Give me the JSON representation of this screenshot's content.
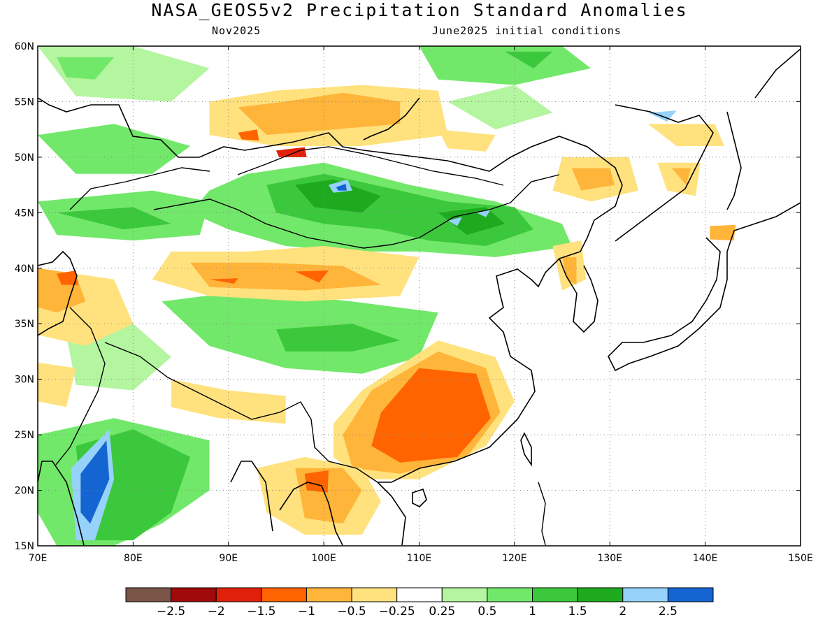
{
  "title": "NASA_GEOS5v2 Precipitation Standard Anomalies",
  "subtitle_left": "Nov2025",
  "subtitle_right": "June2025 initial conditions",
  "axes": {
    "x_ticks": [
      "70E",
      "80E",
      "90E",
      "100E",
      "110E",
      "120E",
      "130E",
      "140E",
      "150E"
    ],
    "y_ticks": [
      "60N",
      "55N",
      "50N",
      "45N",
      "40N",
      "35N",
      "30N",
      "25N",
      "20N",
      "15N"
    ],
    "lon_range": [
      70,
      150
    ],
    "lat_range": [
      15,
      60
    ]
  },
  "colorbar": {
    "colors": [
      "#7a5548",
      "#a00a0a",
      "#e02008",
      "#ff6400",
      "#ffb43a",
      "#ffe27e",
      "#ffffff",
      "#b4f5a0",
      "#72e86a",
      "#3cc83c",
      "#1eaa1e",
      "#96d2fa",
      "#1464d2"
    ],
    "labels": [
      "−2.5",
      "−2",
      "−1.5",
      "−1",
      "−0.5",
      "−0.25",
      "0.25",
      "0.5",
      "1",
      "1.5",
      "2",
      "2.5"
    ]
  },
  "anomaly_regions": [
    {
      "color": "#72e86a",
      "pts": [
        [
          92,
          48.5
        ],
        [
          100,
          49.5
        ],
        [
          109,
          47.5
        ],
        [
          118,
          46
        ],
        [
          125,
          44
        ],
        [
          126,
          42
        ],
        [
          118,
          41
        ],
        [
          110,
          41.5
        ],
        [
          103,
          41.5
        ],
        [
          96,
          42
        ],
        [
          90,
          43.5
        ],
        [
          86,
          45
        ],
        [
          88,
          47
        ]
      ]
    },
    {
      "color": "#3cc83c",
      "pts": [
        [
          94,
          47.5
        ],
        [
          100,
          48.5
        ],
        [
          108,
          47
        ],
        [
          113,
          46
        ],
        [
          120,
          45.5
        ],
        [
          122,
          43.5
        ],
        [
          117,
          42
        ],
        [
          111,
          42.5
        ],
        [
          106,
          43.5
        ],
        [
          100,
          44
        ],
        [
          95,
          45
        ]
      ]
    },
    {
      "color": "#1eaa1e",
      "pts": [
        [
          97,
          47.5
        ],
        [
          101,
          48
        ],
        [
          106,
          46.5
        ],
        [
          104,
          45
        ],
        [
          99,
          45.5
        ]
      ]
    },
    {
      "color": "#1eaa1e",
      "pts": [
        [
          112,
          45
        ],
        [
          117,
          45.5
        ],
        [
          119,
          44
        ],
        [
          115,
          43
        ]
      ]
    },
    {
      "color": "#96d2fa",
      "pts": [
        [
          100.5,
          47.5
        ],
        [
          102.5,
          48
        ],
        [
          103,
          47
        ],
        [
          101,
          46.8
        ]
      ]
    },
    {
      "color": "#1464d2",
      "pts": [
        [
          101.3,
          47.3
        ],
        [
          102.3,
          47.6
        ],
        [
          102.4,
          47
        ],
        [
          101.5,
          47
        ]
      ]
    },
    {
      "color": "#96d2fa",
      "pts": [
        [
          113,
          44.3
        ],
        [
          114.5,
          44.6
        ],
        [
          114,
          43.8
        ]
      ]
    },
    {
      "color": "#96d2fa",
      "pts": [
        [
          116,
          45
        ],
        [
          117.5,
          45.3
        ],
        [
          117,
          44.6
        ]
      ]
    },
    {
      "color": "#72e86a",
      "pts": [
        [
          70,
          46
        ],
        [
          82,
          47
        ],
        [
          88,
          46
        ],
        [
          87,
          43
        ],
        [
          80,
          42.5
        ],
        [
          72,
          43
        ]
      ]
    },
    {
      "color": "#3cc83c",
      "pts": [
        [
          72,
          45
        ],
        [
          80,
          45.5
        ],
        [
          84,
          44
        ],
        [
          79,
          43.5
        ]
      ]
    },
    {
      "color": "#72e86a",
      "pts": [
        [
          70,
          52
        ],
        [
          78,
          53
        ],
        [
          86,
          51
        ],
        [
          82,
          48.5
        ],
        [
          74,
          48.5
        ]
      ]
    },
    {
      "color": "#b4f5a0",
      "pts": [
        [
          70,
          60
        ],
        [
          80,
          60
        ],
        [
          88,
          58
        ],
        [
          84,
          55
        ],
        [
          74,
          55.5
        ]
      ]
    },
    {
      "color": "#72e86a",
      "pts": [
        [
          72,
          59
        ],
        [
          78,
          59
        ],
        [
          76,
          57
        ],
        [
          73,
          57.2
        ]
      ]
    },
    {
      "color": "#72e86a",
      "pts": [
        [
          110,
          60
        ],
        [
          125,
          60
        ],
        [
          128,
          58
        ],
        [
          120,
          56.5
        ],
        [
          112,
          57
        ]
      ]
    },
    {
      "color": "#3cc83c",
      "pts": [
        [
          119,
          59.5
        ],
        [
          124,
          59.5
        ],
        [
          122,
          58
        ]
      ]
    },
    {
      "color": "#b4f5a0",
      "pts": [
        [
          113,
          55
        ],
        [
          120,
          56.5
        ],
        [
          124,
          54
        ],
        [
          118,
          52.5
        ]
      ]
    },
    {
      "color": "#72e86a",
      "pts": [
        [
          83,
          37
        ],
        [
          92,
          38
        ],
        [
          103,
          37
        ],
        [
          112,
          36
        ],
        [
          110,
          32
        ],
        [
          104,
          30.5
        ],
        [
          96,
          31
        ],
        [
          88,
          33
        ]
      ]
    },
    {
      "color": "#3cc83c",
      "pts": [
        [
          95,
          34.5
        ],
        [
          103,
          35
        ],
        [
          108,
          33.5
        ],
        [
          103,
          32.5
        ],
        [
          96,
          32.5
        ]
      ]
    },
    {
      "color": "#72e86a",
      "pts": [
        [
          70,
          25
        ],
        [
          78,
          26.5
        ],
        [
          88,
          24.5
        ],
        [
          88,
          20
        ],
        [
          83,
          17
        ],
        [
          78,
          15
        ],
        [
          72,
          15
        ],
        [
          70,
          18
        ]
      ]
    },
    {
      "color": "#3cc83c",
      "pts": [
        [
          74,
          24
        ],
        [
          80,
          25.5
        ],
        [
          86,
          23
        ],
        [
          84,
          18
        ],
        [
          80,
          15.5
        ],
        [
          75,
          15.5
        ]
      ]
    },
    {
      "color": "#96d2fa",
      "pts": [
        [
          73.5,
          22
        ],
        [
          77.5,
          25.5
        ],
        [
          78,
          21
        ],
        [
          76,
          15.5
        ],
        [
          74,
          15.5
        ]
      ]
    },
    {
      "color": "#1464d2",
      "pts": [
        [
          74.5,
          21.5
        ],
        [
          77.2,
          24.5
        ],
        [
          77.5,
          21
        ],
        [
          75.5,
          17
        ],
        [
          74.5,
          18
        ]
      ]
    },
    {
      "color": "#b4f5a0",
      "pts": [
        [
          73,
          34
        ],
        [
          80,
          35
        ],
        [
          84,
          32
        ],
        [
          80,
          29
        ],
        [
          74,
          29.5
        ]
      ]
    },
    {
      "color": "#ffe27e",
      "pts": [
        [
          84,
          41.5
        ],
        [
          92,
          41.5
        ],
        [
          100,
          42
        ],
        [
          110,
          41
        ],
        [
          108,
          37.5
        ],
        [
          98,
          37
        ],
        [
          88,
          37.5
        ],
        [
          82,
          39
        ]
      ]
    },
    {
      "color": "#ffb43a",
      "pts": [
        [
          86,
          40.5
        ],
        [
          94,
          40.5
        ],
        [
          102,
          40.2
        ],
        [
          106,
          38.5
        ],
        [
          98,
          38
        ],
        [
          88,
          38.3
        ]
      ]
    },
    {
      "color": "#ff6400",
      "pts": [
        [
          88,
          39
        ],
        [
          91,
          39.1
        ],
        [
          90.6,
          38.6
        ]
      ]
    },
    {
      "color": "#ff6400",
      "pts": [
        [
          97,
          39.7
        ],
        [
          100.5,
          39.8
        ],
        [
          99.5,
          38.7
        ]
      ]
    },
    {
      "color": "#ffe27e",
      "pts": [
        [
          88,
          55
        ],
        [
          95,
          56
        ],
        [
          104,
          56.5
        ],
        [
          112,
          56
        ],
        [
          113,
          52
        ],
        [
          104,
          51
        ],
        [
          95,
          51
        ],
        [
          88,
          52
        ]
      ]
    },
    {
      "color": "#ffb43a",
      "pts": [
        [
          91,
          54.5
        ],
        [
          96,
          55
        ],
        [
          102,
          55.8
        ],
        [
          108,
          55
        ],
        [
          108,
          53
        ],
        [
          101,
          52.5
        ],
        [
          94,
          52
        ]
      ]
    },
    {
      "color": "#ff6400",
      "pts": [
        [
          91,
          52.2
        ],
        [
          93,
          52.5
        ],
        [
          93.2,
          51.5
        ],
        [
          91.4,
          51.6
        ]
      ]
    },
    {
      "color": "#e02008",
      "pts": [
        [
          95,
          50.6
        ],
        [
          98,
          50.9
        ],
        [
          98.2,
          50
        ],
        [
          95.3,
          50
        ]
      ]
    },
    {
      "color": "#ffe27e",
      "pts": [
        [
          112,
          52.5
        ],
        [
          118,
          52
        ],
        [
          117,
          50.5
        ],
        [
          113,
          50.8
        ]
      ]
    },
    {
      "color": "#ffe27e",
      "pts": [
        [
          125,
          50
        ],
        [
          132,
          50
        ],
        [
          133,
          47
        ],
        [
          128,
          46
        ],
        [
          124,
          47
        ]
      ]
    },
    {
      "color": "#ffb43a",
      "pts": [
        [
          126,
          49
        ],
        [
          130,
          49
        ],
        [
          130.5,
          47.5
        ],
        [
          127,
          47
        ]
      ]
    },
    {
      "color": "#ffe27e",
      "pts": [
        [
          134,
          53
        ],
        [
          141,
          53
        ],
        [
          142,
          51
        ],
        [
          137,
          51
        ]
      ]
    },
    {
      "color": "#ffe27e",
      "pts": [
        [
          135,
          49.5
        ],
        [
          139.5,
          49.5
        ],
        [
          139,
          46.5
        ],
        [
          136,
          47
        ]
      ]
    },
    {
      "color": "#ffb43a",
      "pts": [
        [
          136.5,
          49
        ],
        [
          138.5,
          49
        ],
        [
          138,
          47.5
        ]
      ]
    },
    {
      "color": "#96d2fa",
      "pts": [
        [
          134,
          54
        ],
        [
          137,
          54.2
        ],
        [
          136,
          53.2
        ]
      ]
    },
    {
      "color": "#ffe27e",
      "pts": [
        [
          124,
          42
        ],
        [
          127,
          42.5
        ],
        [
          127.5,
          39
        ],
        [
          125,
          38
        ]
      ]
    },
    {
      "color": "#ffb43a",
      "pts": [
        [
          125,
          41
        ],
        [
          126.5,
          41
        ],
        [
          126.5,
          38.5
        ],
        [
          125.5,
          39
        ]
      ]
    },
    {
      "color": "#ffe27e",
      "pts": [
        [
          70,
          40
        ],
        [
          78,
          39
        ],
        [
          80,
          35
        ],
        [
          75,
          33
        ],
        [
          70,
          34
        ]
      ]
    },
    {
      "color": "#ffb43a",
      "pts": [
        [
          70,
          40
        ],
        [
          74,
          39.5
        ],
        [
          75,
          37
        ],
        [
          72,
          36
        ],
        [
          70,
          36.5
        ]
      ]
    },
    {
      "color": "#ff6400",
      "pts": [
        [
          72,
          39.5
        ],
        [
          74,
          39.8
        ],
        [
          74.2,
          38.5
        ],
        [
          72.5,
          38.5
        ]
      ]
    },
    {
      "color": "#ffe27e",
      "pts": [
        [
          70,
          31.5
        ],
        [
          74,
          31
        ],
        [
          73,
          27.5
        ],
        [
          70,
          28
        ]
      ]
    },
    {
      "color": "#ffe27e",
      "pts": [
        [
          84,
          30
        ],
        [
          90,
          29
        ],
        [
          96,
          28.5
        ],
        [
          96,
          26
        ],
        [
          89,
          26.5
        ],
        [
          84,
          27.5
        ]
      ]
    },
    {
      "color": "#ffe27e",
      "pts": [
        [
          104,
          29
        ],
        [
          112,
          33.5
        ],
        [
          118,
          32
        ],
        [
          120,
          28
        ],
        [
          117,
          24
        ],
        [
          110,
          21
        ],
        [
          104,
          21
        ],
        [
          101,
          23
        ],
        [
          101,
          26
        ]
      ]
    },
    {
      "color": "#ffb43a",
      "pts": [
        [
          105,
          29
        ],
        [
          112,
          32.5
        ],
        [
          117,
          31
        ],
        [
          118.5,
          27
        ],
        [
          115,
          23
        ],
        [
          108,
          21.5
        ],
        [
          103,
          22
        ],
        [
          102,
          25
        ]
      ]
    },
    {
      "color": "#ff6400",
      "pts": [
        [
          106,
          27
        ],
        [
          110,
          31
        ],
        [
          116,
          30.5
        ],
        [
          117.5,
          26.5
        ],
        [
          114,
          23
        ],
        [
          108,
          22.5
        ],
        [
          105,
          24
        ]
      ]
    },
    {
      "color": "#ffe27e",
      "pts": [
        [
          93,
          22
        ],
        [
          98,
          23
        ],
        [
          104,
          22
        ],
        [
          106,
          19
        ],
        [
          104,
          16
        ],
        [
          98,
          16
        ],
        [
          94,
          18
        ]
      ]
    },
    {
      "color": "#ffb43a",
      "pts": [
        [
          97,
          22
        ],
        [
          102,
          22
        ],
        [
          104,
          20
        ],
        [
          102,
          17
        ],
        [
          98,
          17.5
        ]
      ]
    },
    {
      "color": "#ff6400",
      "pts": [
        [
          98,
          21.5
        ],
        [
          100.5,
          21.8
        ],
        [
          100.4,
          19.8
        ],
        [
          98.2,
          20
        ]
      ]
    },
    {
      "color": "#ffb43a",
      "pts": [
        [
          140.5,
          43.8
        ],
        [
          143.2,
          43.9
        ],
        [
          143,
          42.5
        ],
        [
          140.5,
          42.6
        ]
      ]
    }
  ]
}
